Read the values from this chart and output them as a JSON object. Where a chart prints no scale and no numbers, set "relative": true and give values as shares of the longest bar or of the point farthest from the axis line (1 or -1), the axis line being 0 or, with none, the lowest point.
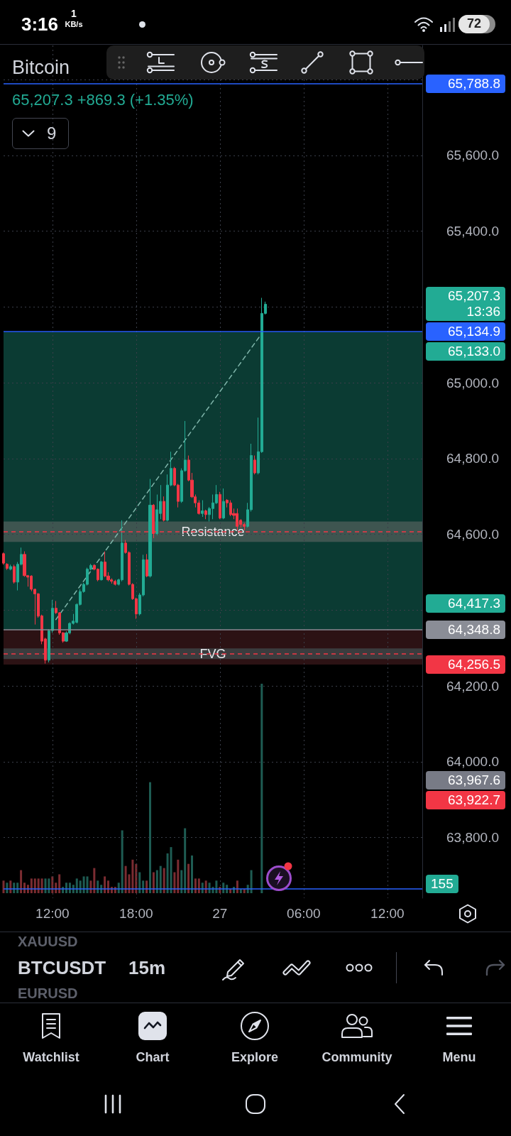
{
  "chart_data": [
    {
      "type": "candlestick",
      "title": "Bitcoin",
      "subtitle": "65,207.3 +869.3 (+1.35%)",
      "categories": [
        null,
        null,
        null,
        null,
        null,
        null,
        null,
        null,
        null,
        null,
        null,
        null,
        null,
        null,
        "12:00",
        null,
        null,
        null,
        null,
        null,
        null,
        null,
        null,
        null,
        null,
        null,
        null,
        null,
        null,
        null,
        null,
        null,
        null,
        null,
        null,
        null,
        null,
        null,
        "18:00",
        null,
        null,
        null,
        null,
        null,
        null,
        null,
        null,
        null,
        null,
        null,
        null,
        null,
        null,
        null,
        null,
        null,
        null,
        null,
        null,
        null,
        null,
        null,
        "27",
        null,
        null,
        null,
        null,
        null,
        null,
        null,
        null,
        null,
        null,
        null,
        null,
        null,
        null,
        null,
        null,
        null,
        null,
        null,
        null,
        null,
        null,
        null,
        "06:00",
        null,
        null,
        null,
        null,
        null,
        null,
        null,
        null,
        null,
        null,
        null,
        null,
        null,
        null,
        null,
        null,
        null,
        null,
        null,
        null,
        null,
        null,
        null,
        "12:00",
        null,
        null,
        null,
        null,
        null,
        null,
        null,
        null,
        null,
        null
      ],
      "ohlc": [
        [
          64549,
          64552,
          64520,
          64524
        ],
        [
          64521,
          64524,
          64506,
          64510
        ],
        [
          64508,
          64520,
          64505,
          64515
        ],
        [
          64515,
          64520,
          64470,
          64474
        ],
        [
          64474,
          64527,
          64452,
          64521
        ],
        [
          64521,
          64565,
          64518,
          64547
        ],
        [
          64547,
          64555,
          64488,
          64491
        ],
        [
          64491,
          64493,
          64462,
          64487
        ],
        [
          64490,
          64492,
          64450,
          64455
        ],
        [
          64455,
          64457,
          64362,
          64443
        ],
        [
          64443,
          64445,
          64380,
          64384
        ],
        [
          64385,
          64388,
          64310,
          64318
        ],
        [
          64324,
          64327,
          64259,
          64268
        ],
        [
          64268,
          64350,
          64262,
          64346
        ],
        [
          64346,
          64427,
          64340,
          64405
        ],
        [
          64405,
          64424,
          64390,
          64393
        ],
        [
          64393,
          64395,
          64335,
          64340
        ],
        [
          64340,
          64342,
          64314,
          64318
        ],
        [
          64318,
          64344,
          64316,
          64340
        ],
        [
          64340,
          64368,
          64336,
          64365
        ],
        [
          64365,
          64390,
          64362,
          64371
        ],
        [
          64368,
          64418,
          64365,
          64415
        ],
        [
          64415,
          64455,
          64412,
          64449
        ],
        [
          64449,
          64472,
          64446,
          64468
        ],
        [
          64468,
          64512,
          64465,
          64508
        ],
        [
          64508,
          64522,
          64505,
          64518
        ],
        [
          64518,
          64521,
          64505,
          64508
        ],
        [
          64508,
          64510,
          64476,
          64480
        ],
        [
          64480,
          64530,
          64478,
          64527
        ],
        [
          64527,
          64555,
          64487,
          64490
        ],
        [
          64490,
          64500,
          64476,
          64480
        ],
        [
          64480,
          64484,
          64470,
          64476
        ],
        [
          64476,
          64480,
          64465,
          64468
        ],
        [
          64468,
          64483,
          64465,
          64480
        ],
        [
          64480,
          64637,
          64476,
          64577
        ],
        [
          64577,
          64585,
          64549,
          64552
        ],
        [
          64552,
          64555,
          64465,
          64468
        ],
        [
          64468,
          64471,
          64427,
          64430
        ],
        [
          64430,
          64433,
          64377,
          64390
        ],
        [
          64390,
          64445,
          64386,
          64440
        ],
        [
          64440,
          64546,
          64436,
          64533
        ],
        [
          64533,
          64548,
          64487,
          64490
        ],
        [
          64490,
          64746,
          64486,
          64677
        ],
        [
          64677,
          64680,
          64590,
          64602
        ],
        [
          64602,
          64705,
          64598,
          64665
        ],
        [
          64655,
          64730,
          64640,
          64687
        ],
        [
          64687,
          64700,
          64634,
          64637
        ],
        [
          64637,
          64758,
          64634,
          64730
        ],
        [
          64730,
          64818,
          64727,
          64774
        ],
        [
          64774,
          64778,
          64727,
          64730
        ],
        [
          64730,
          64733,
          64671,
          64687
        ],
        [
          64687,
          64774,
          64683,
          64768
        ],
        [
          64768,
          64899,
          64765,
          64796
        ],
        [
          64796,
          64808,
          64740,
          64743
        ],
        [
          64743,
          64762,
          64696,
          64699
        ],
        [
          64699,
          64705,
          64671,
          64683
        ],
        [
          64683,
          64690,
          64652,
          64655
        ],
        [
          64655,
          64690,
          64646,
          64662
        ],
        [
          64662,
          64665,
          64640,
          64652
        ],
        [
          64652,
          64672,
          64634,
          64668
        ],
        [
          64668,
          64705,
          64640,
          64683
        ],
        [
          64683,
          64730,
          64680,
          64705
        ],
        [
          64705,
          64712,
          64640,
          64643
        ],
        [
          64643,
          64721,
          64640,
          64687
        ],
        [
          64690,
          64693,
          64671,
          64683
        ],
        [
          64683,
          64690,
          64648,
          64652
        ],
        [
          64655,
          64668,
          64640,
          64650
        ],
        [
          64655,
          64668,
          64610,
          64621
        ],
        [
          64637,
          64640,
          64618,
          64626
        ],
        [
          64626,
          64630,
          64610,
          64621
        ],
        [
          64621,
          64683,
          64618,
          64665
        ],
        [
          64665,
          64839,
          64660,
          64808
        ],
        [
          64796,
          64808,
          64758,
          64762
        ],
        [
          64762,
          64908,
          64758,
          64818
        ],
        [
          64818,
          65224,
          64815,
          65183
        ],
        [
          65183,
          65214,
          65180,
          65207.3
        ],
        null,
        null,
        null,
        null,
        null,
        null,
        null,
        null,
        null,
        null,
        null,
        null,
        null,
        null,
        null,
        null,
        null,
        null,
        null,
        null,
        null,
        null,
        null,
        null,
        null,
        null,
        null,
        null,
        null,
        null,
        null,
        null,
        null,
        null,
        null,
        null,
        null,
        null,
        null,
        null,
        null,
        null,
        null,
        null,
        null
      ],
      "colors": [
        "#f23645",
        "#f23645",
        "#22ab94",
        "#f23645",
        "#22ab94",
        "#22ab94",
        "#f23645",
        "#f23645",
        "#f23645",
        "#f23645",
        "#f23645",
        "#f23645",
        "#f23645",
        "#22ab94",
        "#22ab94",
        "#f23645",
        "#f23645",
        "#f23645",
        "#22ab94",
        "#22ab94",
        "#22ab94",
        "#22ab94",
        "#22ab94",
        "#22ab94",
        "#22ab94",
        "#22ab94",
        "#f23645",
        "#f23645",
        "#22ab94",
        "#f23645",
        "#f23645",
        "#f23645",
        "#f23645",
        "#22ab94",
        "#22ab94",
        "#f23645",
        "#f23645",
        "#f23645",
        "#f23645",
        "#22ab94",
        "#22ab94",
        "#f23645",
        "#22ab94",
        "#f23645",
        "#22ab94",
        "#22ab94",
        "#f23645",
        "#22ab94",
        "#22ab94",
        "#f23645",
        "#f23645",
        "#22ab94",
        "#22ab94",
        "#f23645",
        "#f23645",
        "#f23645",
        "#f23645",
        "#22ab94",
        "#f23645",
        "#22ab94",
        "#22ab94",
        "#22ab94",
        "#f23645",
        "#22ab94",
        "#f23645",
        "#f23645",
        "#f23645",
        "#f23645",
        "#f23645",
        "#f23645",
        "#22ab94",
        "#22ab94",
        "#f23645",
        "#22ab94",
        "#22ab94",
        "#22ab94",
        null,
        null,
        null,
        null,
        null,
        null,
        null,
        null,
        null,
        null,
        null,
        null,
        null,
        null,
        null,
        null,
        null,
        null,
        null,
        null,
        null,
        null,
        null,
        null,
        null,
        null,
        null,
        null,
        null,
        null,
        null,
        null,
        null,
        null,
        null,
        null,
        null,
        null,
        null,
        null,
        null,
        null,
        null,
        null,
        null
      ],
      "series": [
        {
          "type": "line",
          "color": "#7fb5aa",
          "line_style": "dashed",
          "marker": "none",
          "values": [
            null,
            null,
            null,
            null,
            null,
            null,
            null,
            null,
            null,
            null,
            null,
            null,
            null,
            null,
            null,
            64375,
            null,
            null,
            null,
            null,
            null,
            null,
            null,
            null,
            null,
            null,
            null,
            null,
            null,
            null,
            null,
            null,
            null,
            null,
            null,
            null,
            null,
            null,
            null,
            null,
            null,
            null,
            null,
            null,
            null,
            null,
            null,
            null,
            null,
            null,
            null,
            null,
            null,
            null,
            null,
            null,
            null,
            null,
            null,
            null,
            null,
            null,
            null,
            null,
            null,
            null,
            null,
            null,
            null,
            null,
            null,
            null,
            null,
            null,
            65130,
            null,
            null,
            null,
            null,
            null,
            null,
            null,
            null,
            null,
            null,
            null,
            null,
            null,
            null,
            null,
            null,
            null,
            null,
            null,
            null,
            null,
            null,
            null,
            null,
            null,
            null,
            null,
            null,
            null,
            null,
            null,
            null,
            null,
            null,
            null,
            null,
            null,
            null,
            null,
            null,
            null,
            null,
            null,
            null,
            null,
            null
          ]
        }
      ],
      "ylim": [
        63640,
        65890
      ],
      "yticks": [
        {
          "value": 63800,
          "label": "63,800.0"
        },
        {
          "value": 64000,
          "label": "64,000.0"
        },
        {
          "value": 64200,
          "label": "64,200.0"
        },
        {
          "value": 64400,
          "label": null
        },
        {
          "value": 64600,
          "label": "64,600.0"
        },
        {
          "value": 64800,
          "label": "64,800.0"
        },
        {
          "value": 65000,
          "label": "65,000.0"
        },
        {
          "value": 65200,
          "label": null
        },
        {
          "value": 65400,
          "label": "65,400.0"
        },
        {
          "value": 65600,
          "label": "65,600.0"
        },
        {
          "value": 65800,
          "label": null
        }
      ],
      "grid": true,
      "ref_lines": [
        {
          "axis": "y",
          "value": 65788.8,
          "label": "65,788.8",
          "color": "#2962ff"
        },
        {
          "axis": "y",
          "value": 65134.9,
          "label": "65,134.9",
          "color": "#2962ff"
        },
        {
          "axis": "y",
          "value": 64607,
          "color": "#f23645",
          "line_style": "dashed"
        },
        {
          "axis": "y",
          "value": 64348.8,
          "label": "64,348.8",
          "color": "#8a8d96"
        },
        {
          "axis": "y",
          "value": 64285,
          "color": "#f23645",
          "line_style": "dashed"
        },
        {
          "axis": "y",
          "value": 63665,
          "color": "#2962ff"
        }
      ],
      "bands": [
        {
          "axis": "y",
          "from": 64348.8,
          "to": 65133,
          "color": "#0b3b33"
        },
        {
          "axis": "y",
          "from": 64256.5,
          "to": 64348.8,
          "color": "#2c1214"
        },
        {
          "axis": "y",
          "from": 64580,
          "to": 64634,
          "label": "Resistance",
          "color": "#3e5550"
        },
        {
          "axis": "y",
          "from": 64271,
          "to": 64299,
          "label": "FVG",
          "color": "#3b3c3e"
        }
      ],
      "annotations": [
        "65,207.3\n13:36",
        "65,133.0",
        "64,417.3",
        "64,256.5",
        "63,967.6",
        "63,922.7",
        "3:16",
        "1",
        "KB/s",
        "72",
        "9",
        "XAUUSD",
        "BTCUSDT",
        "15m",
        "EURUSD",
        "Watchlist",
        "Chart",
        "Explore",
        "Community",
        "Menu"
      ]
    },
    {
      "type": "bar",
      "relative": true,
      "categories": [
        null,
        null,
        null,
        null,
        null,
        null,
        null,
        null,
        null,
        null,
        null,
        null,
        null,
        null,
        null,
        null,
        null,
        null,
        null,
        null,
        null,
        null,
        null,
        null,
        null,
        null,
        null,
        null,
        null,
        null,
        null,
        null,
        null,
        null,
        null,
        null,
        null,
        null,
        null,
        null,
        null,
        null,
        null,
        null,
        null,
        null,
        null,
        null,
        null,
        null,
        null,
        null,
        null,
        null,
        null,
        null,
        null,
        null,
        null,
        null,
        null,
        null,
        null,
        null,
        null,
        null,
        null,
        null,
        null,
        null,
        null,
        null,
        null,
        null,
        null,
        null,
        null,
        null,
        null,
        null,
        null,
        null,
        null,
        null,
        null,
        null,
        null,
        null,
        null,
        null,
        null,
        null,
        null,
        null,
        null,
        null,
        null,
        null,
        null,
        null,
        null,
        null,
        null,
        null,
        null,
        null,
        null,
        null,
        null,
        null,
        null,
        null,
        null,
        null,
        null,
        null,
        null,
        null,
        null,
        null,
        null
      ],
      "values": [
        0.06,
        0.05,
        0.06,
        0.05,
        0.05,
        0.11,
        0.05,
        0.04,
        0.07,
        0.07,
        0.07,
        0.07,
        0.07,
        0.07,
        0.08,
        0.05,
        0.09,
        0.03,
        0.05,
        0.05,
        0.04,
        0.07,
        0.06,
        0.08,
        0.08,
        0.06,
        0.12,
        0.06,
        0.04,
        0.08,
        0.06,
        0.03,
        0.03,
        0.05,
        0.3,
        0.13,
        0.09,
        0.16,
        0.14,
        0.1,
        0.06,
        0.06,
        0.53,
        0.1,
        0.11,
        0.13,
        0.12,
        0.19,
        0.22,
        0.1,
        0.16,
        0.11,
        0.31,
        0.14,
        0.18,
        0.07,
        0.07,
        0.05,
        0.06,
        0.05,
        0.03,
        0.06,
        0.03,
        0.05,
        0.04,
        0.02,
        0.03,
        0.06,
        0.02,
        0.02,
        0.04,
        0.11,
        null,
        null,
        1,
        null,
        null,
        null,
        null,
        null,
        null,
        null,
        null,
        null,
        null,
        null,
        null,
        null,
        null,
        null,
        null,
        null,
        null,
        null,
        null,
        null,
        null,
        null,
        null,
        null,
        null,
        null,
        null,
        null,
        null,
        null,
        null,
        null,
        null,
        null,
        null,
        null,
        null,
        null,
        null,
        null,
        null,
        null,
        null,
        null,
        null
      ],
      "colors": [
        "#7b2c31",
        "#1e5c53",
        "#7b2c31",
        "#1e5c53",
        "#1e5c53",
        "#7b2c31",
        "#7b2c31",
        "#7b2c31",
        "#7b2c31",
        "#7b2c31",
        "#7b2c31",
        "#7b2c31",
        "#1e5c53",
        "#1e5c53",
        "#7b2c31",
        "#7b2c31",
        "#7b2c31",
        "#1e5c53",
        "#1e5c53",
        "#1e5c53",
        "#1e5c53",
        "#1e5c53",
        "#1e5c53",
        "#1e5c53",
        "#1e5c53",
        "#7b2c31",
        "#7b2c31",
        "#1e5c53",
        "#1e5c53",
        "#7b2c31",
        "#7b2c31",
        "#7b2c31",
        "#7b2c31",
        "#1e5c53",
        "#1e5c53",
        "#7b2c31",
        "#7b2c31",
        "#7b2c31",
        "#7b2c31",
        "#1e5c53",
        "#1e5c53",
        "#7b2c31",
        "#1e5c53",
        "#7b2c31",
        "#1e5c53",
        "#1e5c53",
        "#7b2c31",
        "#1e5c53",
        "#1e5c53",
        "#7b2c31",
        "#7b2c31",
        "#1e5c53",
        "#1e5c53",
        "#7b2c31",
        "#1e5c53",
        "#7b2c31",
        "#7b2c31",
        "#1e5c53",
        "#7b2c31",
        "#1e5c53",
        "#1e5c53",
        "#1e5c53",
        "#7b2c31",
        "#1e5c53",
        "#1e5c53",
        "#7b2c31",
        "#1e5c53",
        "#7b2c31",
        "#1e5c53",
        "#7b2c31",
        "#1e5c53",
        "#1e5c53",
        null,
        null,
        "#1e5c53",
        null,
        null,
        null,
        null,
        null,
        null,
        null,
        null,
        null,
        null,
        null,
        null,
        null,
        null,
        null,
        null,
        null,
        null,
        null,
        null,
        null,
        null,
        null,
        null,
        null,
        null,
        null,
        null,
        null,
        null,
        null,
        null,
        null,
        null,
        null,
        null,
        null,
        null,
        null,
        null,
        null,
        null,
        null,
        null,
        null,
        null
      ],
      "annotations": [
        "155"
      ]
    }
  ]
}
